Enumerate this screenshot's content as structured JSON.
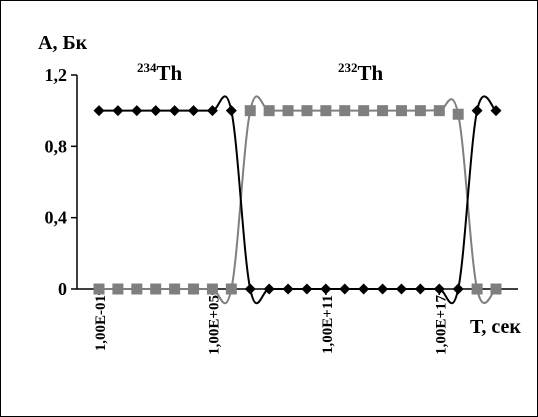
{
  "chart_data": {
    "type": "line",
    "ylabel": "А, Бк",
    "xlabel": "Т, сек",
    "xscale": "log",
    "ylim": [
      0,
      1.2
    ],
    "yticks": [
      {
        "value": 0,
        "label": "0"
      },
      {
        "value": 0.4,
        "label": "0,4"
      },
      {
        "value": 0.8,
        "label": "0,8"
      },
      {
        "value": 1.2,
        "label": "1,2"
      }
    ],
    "xticks": [
      {
        "value": 0.1,
        "label": "1,00E-01"
      },
      {
        "value": 100000,
        "label": "1,00E+05"
      },
      {
        "value": 100000000000,
        "label": "1,00E+11"
      },
      {
        "value": 100000000000000000,
        "label": "1,00E+17"
      }
    ],
    "grid": false,
    "legend": "none",
    "annotations": [
      {
        "mass": "234",
        "element": "Th"
      },
      {
        "mass": "232",
        "element": "Th"
      }
    ],
    "series": [
      {
        "marker": "diamond",
        "color": "#000000",
        "points": [
          {
            "x": 0.1,
            "y": 1
          },
          {
            "x": 1,
            "y": 1
          },
          {
            "x": 10,
            "y": 1
          },
          {
            "x": 100,
            "y": 1
          },
          {
            "x": 1000,
            "y": 1
          },
          {
            "x": 10000,
            "y": 1
          },
          {
            "x": 100000,
            "y": 1
          },
          {
            "x": 1000000,
            "y": 1
          },
          {
            "x": 10000000,
            "y": 0
          },
          {
            "x": 100000000,
            "y": 0
          },
          {
            "x": 1000000000,
            "y": 0
          },
          {
            "x": 10000000000,
            "y": 0
          },
          {
            "x": 100000000000,
            "y": 0
          },
          {
            "x": 1000000000000,
            "y": 0
          },
          {
            "x": 10000000000000,
            "y": 0
          },
          {
            "x": 100000000000000,
            "y": 0
          },
          {
            "x": 1000000000000000,
            "y": 0
          },
          {
            "x": 10000000000000000,
            "y": 0
          },
          {
            "x": 100000000000000000,
            "y": 0
          },
          {
            "x": 1000000000000000000,
            "y": 0
          },
          {
            "x": 10000000000000000000,
            "y": 1
          },
          {
            "x": 100000000000000000000,
            "y": 1
          }
        ]
      },
      {
        "marker": "square",
        "color": "#7f7f7f",
        "points": [
          {
            "x": 0.1,
            "y": 0
          },
          {
            "x": 1,
            "y": 0
          },
          {
            "x": 10,
            "y": 0
          },
          {
            "x": 100,
            "y": 0
          },
          {
            "x": 1000,
            "y": 0
          },
          {
            "x": 10000,
            "y": 0
          },
          {
            "x": 100000,
            "y": 0
          },
          {
            "x": 1000000,
            "y": 0
          },
          {
            "x": 10000000,
            "y": 1
          },
          {
            "x": 100000000,
            "y": 1
          },
          {
            "x": 1000000000,
            "y": 1
          },
          {
            "x": 10000000000,
            "y": 1
          },
          {
            "x": 100000000000,
            "y": 1
          },
          {
            "x": 1000000000000,
            "y": 1
          },
          {
            "x": 10000000000000,
            "y": 1
          },
          {
            "x": 100000000000000,
            "y": 1
          },
          {
            "x": 1000000000000000,
            "y": 1
          },
          {
            "x": 10000000000000000,
            "y": 1
          },
          {
            "x": 100000000000000000,
            "y": 1
          },
          {
            "x": 1000000000000000000,
            "y": 0.98
          },
          {
            "x": 10000000000000000000,
            "y": 0
          },
          {
            "x": 100000000000000000000,
            "y": 0
          }
        ]
      }
    ]
  }
}
